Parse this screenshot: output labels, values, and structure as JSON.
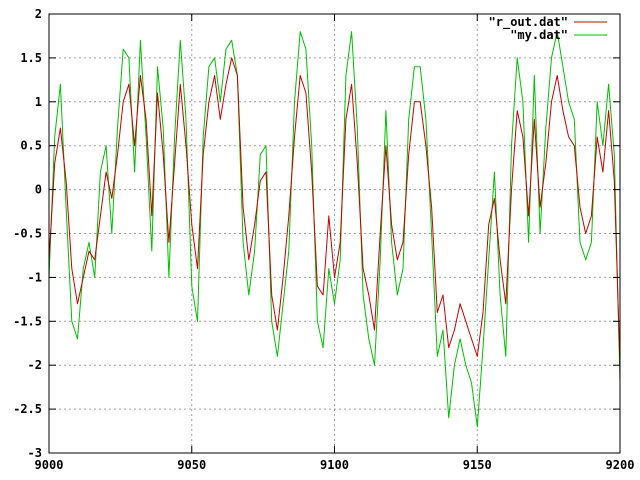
{
  "chart_data": {
    "type": "line",
    "title": "",
    "xlabel": "",
    "ylabel": "",
    "xlim": [
      9000,
      9200
    ],
    "ylim": [
      -3,
      2
    ],
    "x_ticks": [
      9000,
      9050,
      9100,
      9150,
      9200
    ],
    "x_tick_labels": [
      "9000",
      "9050",
      "9100",
      "9150",
      "9200"
    ],
    "y_ticks": [
      -3,
      -2.5,
      -2,
      -1.5,
      -1,
      -0.5,
      0,
      0.5,
      1,
      1.5,
      2
    ],
    "y_tick_labels": [
      "-3",
      "-2.5",
      "-2",
      "-1.5",
      "-1",
      "-0.5",
      "0",
      "0.5",
      "1",
      "1.5",
      "2"
    ],
    "grid": true,
    "legend_position": "top-right",
    "x": [
      9000,
      9002,
      9004,
      9006,
      9008,
      9010,
      9012,
      9014,
      9016,
      9018,
      9020,
      9022,
      9024,
      9026,
      9028,
      9030,
      9032,
      9034,
      9036,
      9038,
      9040,
      9042,
      9044,
      9046,
      9048,
      9050,
      9052,
      9054,
      9056,
      9058,
      9060,
      9062,
      9064,
      9066,
      9068,
      9070,
      9072,
      9074,
      9076,
      9078,
      9080,
      9082,
      9084,
      9086,
      9088,
      9090,
      9092,
      9094,
      9096,
      9098,
      9100,
      9102,
      9104,
      9106,
      9108,
      9110,
      9112,
      9114,
      9116,
      9118,
      9120,
      9122,
      9124,
      9126,
      9128,
      9130,
      9132,
      9134,
      9136,
      9138,
      9140,
      9142,
      9144,
      9146,
      9148,
      9150,
      9152,
      9154,
      9156,
      9158,
      9160,
      9162,
      9164,
      9166,
      9168,
      9170,
      9172,
      9174,
      9176,
      9178,
      9180,
      9182,
      9184,
      9186,
      9188,
      9190,
      9192,
      9194,
      9196,
      9198,
      9200
    ],
    "series": [
      {
        "name": "\"r_out.dat\"",
        "color": "#c80000",
        "values": [
          -0.8,
          0.3,
          0.7,
          0.1,
          -0.9,
          -1.3,
          -1.0,
          -0.7,
          -0.8,
          -0.3,
          0.2,
          -0.1,
          0.4,
          1.0,
          1.2,
          0.5,
          1.3,
          0.8,
          -0.3,
          1.1,
          0.4,
          -0.6,
          0.3,
          1.2,
          0.5,
          -0.4,
          -0.9,
          0.4,
          1.0,
          1.3,
          0.8,
          1.2,
          1.5,
          1.3,
          -0.2,
          -0.8,
          -0.4,
          0.1,
          0.2,
          -1.2,
          -1.6,
          -1.0,
          -0.3,
          0.6,
          1.3,
          1.1,
          0.2,
          -1.1,
          -1.2,
          -0.3,
          -1.0,
          -0.6,
          0.8,
          1.2,
          0.3,
          -0.9,
          -1.2,
          -1.6,
          -0.5,
          0.5,
          -0.4,
          -0.8,
          -0.6,
          0.4,
          1.0,
          1.0,
          0.5,
          -0.2,
          -1.4,
          -1.2,
          -1.8,
          -1.6,
          -1.3,
          -1.5,
          -1.7,
          -1.9,
          -1.4,
          -0.4,
          -0.1,
          -0.8,
          -1.3,
          0.0,
          0.9,
          0.6,
          -0.3,
          0.8,
          -0.2,
          0.3,
          1.0,
          1.3,
          0.9,
          0.6,
          0.5,
          -0.2,
          -0.5,
          -0.3,
          0.6,
          0.2,
          0.9,
          0.1,
          -2.0
        ]
      },
      {
        "name": "\"my.dat\"",
        "color": "#00c000",
        "values": [
          -1.0,
          0.6,
          1.2,
          -0.2,
          -1.5,
          -1.7,
          -0.9,
          -0.6,
          -1.0,
          0.2,
          0.5,
          -0.5,
          0.7,
          1.6,
          1.5,
          0.2,
          1.7,
          0.6,
          -0.7,
          1.4,
          0.7,
          -1.0,
          0.6,
          1.7,
          0.8,
          -1.1,
          -1.5,
          0.6,
          1.4,
          1.5,
          1.0,
          1.6,
          1.7,
          1.3,
          -0.6,
          -1.2,
          -0.7,
          0.4,
          0.5,
          -1.5,
          -1.9,
          -1.3,
          -0.7,
          1.0,
          1.8,
          1.6,
          0.5,
          -1.5,
          -1.8,
          -0.9,
          -1.3,
          -0.8,
          1.3,
          1.8,
          0.7,
          -1.2,
          -1.7,
          -2.0,
          -0.8,
          0.9,
          -0.6,
          -1.2,
          -0.9,
          0.8,
          1.4,
          1.4,
          0.8,
          -0.5,
          -1.9,
          -1.6,
          -2.6,
          -2.0,
          -1.7,
          -2.0,
          -2.2,
          -2.7,
          -1.8,
          -0.8,
          0.2,
          -1.2,
          -1.9,
          0.5,
          1.5,
          1.0,
          -0.6,
          1.3,
          -0.5,
          0.7,
          1.5,
          1.8,
          1.4,
          1.0,
          0.8,
          -0.6,
          -0.8,
          -0.6,
          1.0,
          0.5,
          1.2,
          0.4,
          -2.2
        ]
      }
    ]
  }
}
